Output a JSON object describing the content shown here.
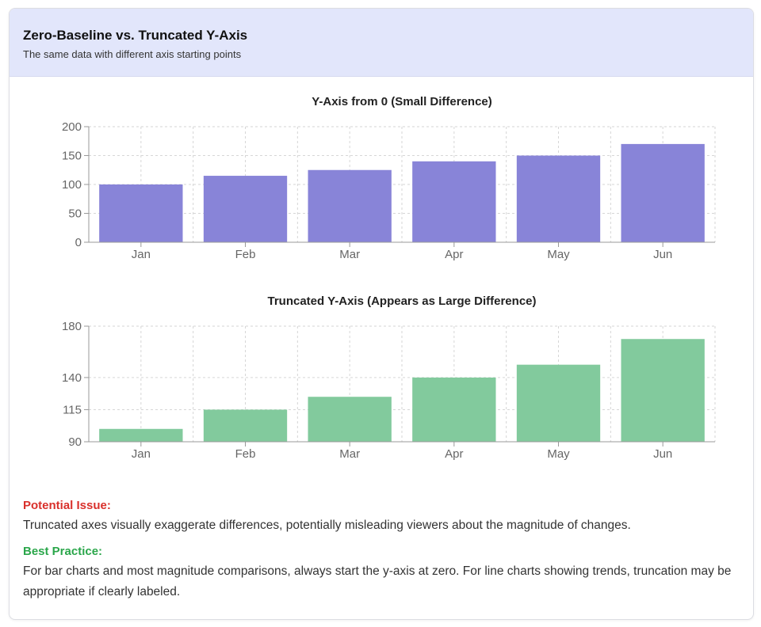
{
  "header": {
    "title": "Zero-Baseline vs. Truncated Y-Axis",
    "subtitle": "The same data with different axis starting points"
  },
  "chart_data": [
    {
      "type": "bar",
      "title": "Y-Axis from 0 (Small Difference)",
      "categories": [
        "Jan",
        "Feb",
        "Mar",
        "Apr",
        "May",
        "Jun"
      ],
      "values": [
        100,
        115,
        125,
        140,
        150,
        170
      ],
      "ylim": [
        0,
        200
      ],
      "yticks": [
        0,
        50,
        100,
        150,
        200
      ],
      "grid": true,
      "color": "#8884d8"
    },
    {
      "type": "bar",
      "title": "Truncated Y-Axis (Appears as Large Difference)",
      "categories": [
        "Jan",
        "Feb",
        "Mar",
        "Apr",
        "May",
        "Jun"
      ],
      "values": [
        100,
        115,
        125,
        140,
        150,
        170
      ],
      "ylim": [
        90,
        180
      ],
      "yticks": [
        90,
        115,
        140,
        180
      ],
      "grid": true,
      "color": "#82ca9d"
    }
  ],
  "notes": {
    "issue_heading": "Potential Issue:",
    "issue_text": "Truncated axes visually exaggerate differences, potentially misleading viewers about the magnitude of changes.",
    "best_heading": "Best Practice:",
    "best_text": "For bar charts and most magnitude comparisons, always start the y-axis at zero. For line charts showing trends, truncation may be appropriate if clearly labeled."
  }
}
